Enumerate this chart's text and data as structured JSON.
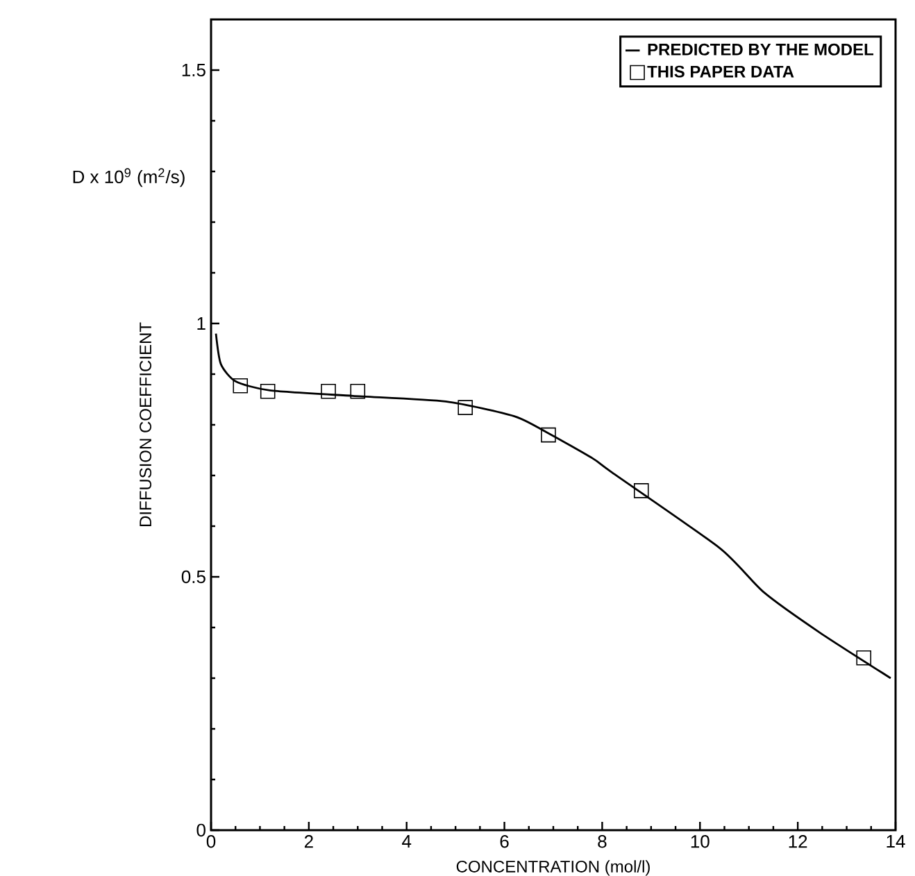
{
  "chart_data": {
    "type": "line",
    "xlabel": "CONCENTRATION  (mol/l)",
    "ylabel": "DIFFUSION COEFFICIENT",
    "annotations": [
      "D x 10$^{9}$ (m$^{2}$/s)"
    ],
    "xlim": [
      0,
      14
    ],
    "ylim": [
      0,
      1.6
    ],
    "xticks": [
      0,
      2,
      4,
      6,
      8,
      10,
      12,
      14
    ],
    "yticks": [
      0,
      0.5,
      1,
      1.5
    ],
    "legend": "top right",
    "grid": false,
    "series": [
      {
        "name": "PREDICTED BY THE MODEL",
        "color": "#000000",
        "marker": "none",
        "line_style": "solid",
        "x": [
          0.1,
          0.2,
          0.5,
          1.2,
          2.9,
          4.8,
          6.2,
          6.85,
          7.8,
          8.2,
          10.4,
          11.3,
          12.45,
          13.9
        ],
        "values": [
          0.98,
          0.92,
          0.886,
          0.868,
          0.857,
          0.846,
          0.817,
          0.786,
          0.734,
          0.706,
          0.557,
          0.47,
          0.39,
          0.3
        ]
      },
      {
        "name": "THIS PAPER DATA",
        "type": "scatter",
        "color": "#000000",
        "marker": "square",
        "x": [
          0.6,
          1.16,
          2.4,
          3.0,
          5.2,
          6.9,
          8.8,
          13.35
        ],
        "values": [
          0.877,
          0.866,
          0.866,
          0.866,
          0.834,
          0.78,
          0.67,
          0.34
        ]
      }
    ]
  }
}
